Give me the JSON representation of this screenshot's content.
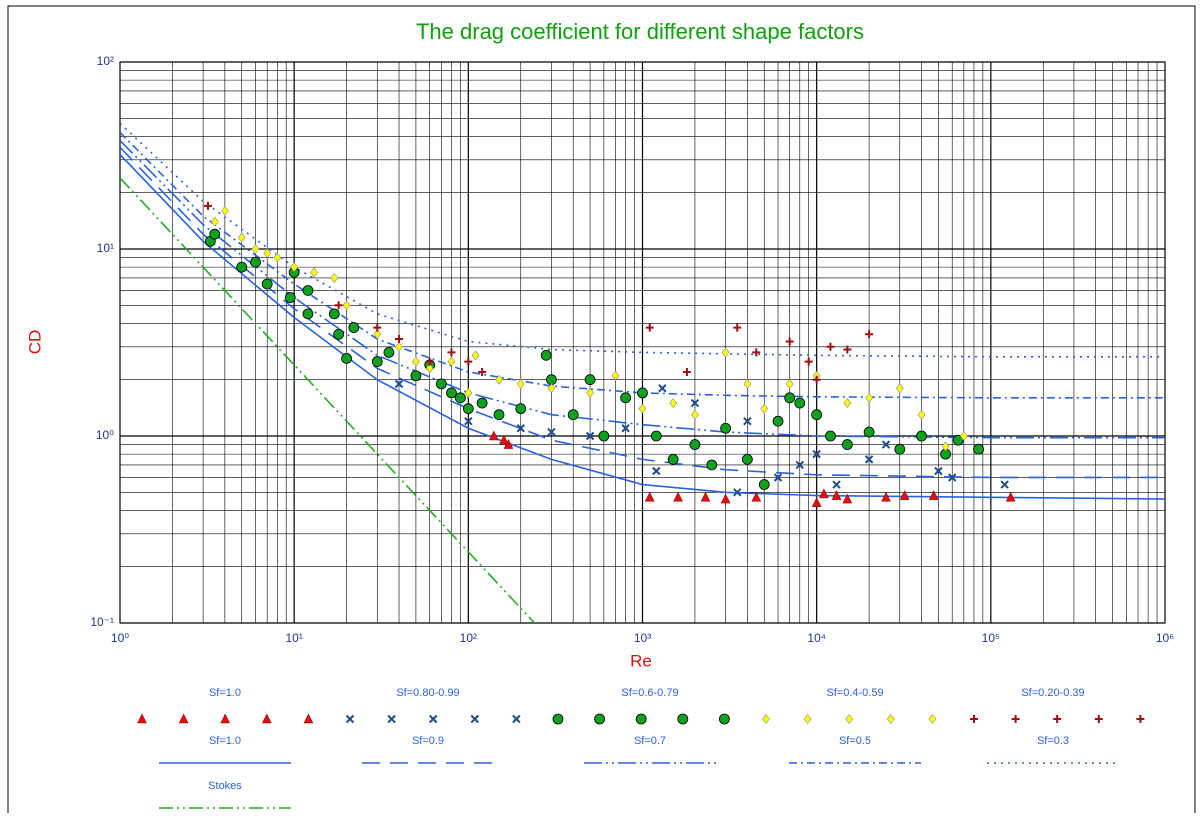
{
  "chart_data": {
    "type": "scatter",
    "title": "The drag coefficient for different shape factors",
    "x_label": "Re",
    "y_label": "CD",
    "log_x": true,
    "log_y": true,
    "grid": true,
    "minor_grid": true,
    "xlim": [
      1,
      1000000
    ],
    "ylim": [
      0.1,
      100
    ],
    "xticks": [
      {
        "value": 1,
        "label": "10⁰"
      },
      {
        "value": 10,
        "label": "10¹"
      },
      {
        "value": 100,
        "label": "10²"
      },
      {
        "value": 1000,
        "label": "10³"
      },
      {
        "value": 10000,
        "label": "10⁴"
      },
      {
        "value": 100000,
        "label": "10⁵"
      },
      {
        "value": 1000000,
        "label": "10⁶"
      }
    ],
    "yticks": [
      {
        "value": 0.1,
        "label": "10⁻¹"
      },
      {
        "value": 1,
        "label": "10⁰"
      },
      {
        "value": 10,
        "label": "10¹"
      },
      {
        "value": 100,
        "label": "10²"
      }
    ],
    "legend": "bottom",
    "series": [
      {
        "name": "Sf=1.0",
        "type": "scatter",
        "marker": "triangle",
        "color": "#e01010",
        "x": [
          1100,
          1600,
          2300,
          3000,
          4500,
          10000,
          11000,
          13000,
          15000,
          25000,
          32000,
          47000,
          130000,
          140,
          170,
          160
        ],
        "values": [
          0.47,
          0.47,
          0.47,
          0.46,
          0.47,
          0.44,
          0.49,
          0.48,
          0.46,
          0.47,
          0.48,
          0.48,
          0.47,
          1.0,
          0.9,
          0.95
        ]
      },
      {
        "name": "Sf=0.80-0.99",
        "type": "scatter",
        "marker": "x",
        "color": "#1f4e8c",
        "x": [
          40,
          100,
          200,
          300,
          500,
          800,
          1200,
          1300,
          2000,
          3500,
          6000,
          8000,
          10000,
          13000,
          20000,
          50000,
          60000,
          120000,
          4000,
          25000
        ],
        "values": [
          1.9,
          1.2,
          1.1,
          1.05,
          1.0,
          1.1,
          0.65,
          1.8,
          1.5,
          0.5,
          0.6,
          0.7,
          0.8,
          0.55,
          0.75,
          0.65,
          0.6,
          0.55,
          1.2,
          0.9
        ]
      },
      {
        "name": "Sf=0.6-0.79",
        "type": "scatter",
        "marker": "circle",
        "color": "#10a020",
        "x": [
          3.3,
          3.5,
          5,
          6,
          7,
          9.5,
          10,
          12,
          12,
          17,
          18,
          20,
          22,
          30,
          35,
          50,
          60,
          70,
          80,
          90,
          100,
          120,
          150,
          200,
          280,
          300,
          400,
          500,
          600,
          800,
          1000,
          1200,
          1500,
          2000,
          2500,
          3000,
          4000,
          5000,
          6000,
          7000,
          8000,
          10000,
          12000,
          15000,
          20000,
          30000,
          40000,
          55000,
          65000,
          85000
        ],
        "values": [
          11,
          12,
          8,
          8.5,
          6.5,
          5.5,
          7.5,
          4.5,
          6,
          4.5,
          3.5,
          2.6,
          3.8,
          2.5,
          2.8,
          2.1,
          2.4,
          1.9,
          1.7,
          1.6,
          1.4,
          1.5,
          1.3,
          1.4,
          2.7,
          2.0,
          1.3,
          2.0,
          1.0,
          1.6,
          1.7,
          1.0,
          0.75,
          0.9,
          0.7,
          1.1,
          0.75,
          0.55,
          1.2,
          1.6,
          1.5,
          1.3,
          1.0,
          0.9,
          1.05,
          0.85,
          1.0,
          0.8,
          0.95,
          0.85
        ]
      },
      {
        "name": "Sf=0.4-0.59",
        "type": "scatter",
        "marker": "diamond",
        "color": "#ffff00",
        "x": [
          3.5,
          4,
          5,
          6,
          7,
          8,
          10,
          13,
          17,
          20,
          30,
          40,
          50,
          60,
          80,
          100,
          110,
          150,
          200,
          300,
          500,
          700,
          1000,
          1500,
          2000,
          3000,
          4000,
          5000,
          7000,
          10000,
          15000,
          20000,
          30000,
          40000,
          55000,
          70000
        ],
        "values": [
          14,
          16,
          11.5,
          10,
          9.5,
          9,
          8,
          7.5,
          7,
          5,
          3.5,
          3,
          2.5,
          2.3,
          2.5,
          1.7,
          2.7,
          2.0,
          1.9,
          1.8,
          1.7,
          2.1,
          1.4,
          1.5,
          1.3,
          2.8,
          1.9,
          1.4,
          1.9,
          2.1,
          1.5,
          1.6,
          1.8,
          1.3,
          0.88,
          1.0
        ]
      },
      {
        "name": "Sf=0.20-0.39",
        "type": "scatter",
        "marker": "plus",
        "color": "#a01010",
        "x": [
          3.2,
          18,
          30,
          40,
          60,
          80,
          100,
          120,
          1100,
          1800,
          3500,
          4500,
          7000,
          9000,
          12000,
          20000,
          10000,
          15000
        ],
        "values": [
          17,
          5,
          3.8,
          3.3,
          2.5,
          2.8,
          2.5,
          2.2,
          3.8,
          2.2,
          3.8,
          2.8,
          3.2,
          2.5,
          3.0,
          3.5,
          2.0,
          2.9
        ]
      },
      {
        "name": "Sf=1.0",
        "type": "line",
        "dash": "none",
        "color": "#2a62e0",
        "x": [
          1,
          3,
          10,
          30,
          100,
          300,
          1000,
          3000,
          10000,
          100000,
          1000000
        ],
        "values": [
          32,
          11,
          4.3,
          2.0,
          1.1,
          0.75,
          0.55,
          0.5,
          0.48,
          0.47,
          0.46
        ]
      },
      {
        "name": "Sf=0.9",
        "type": "line",
        "dash": "18 10",
        "color": "#2a62e0",
        "x": [
          1,
          3,
          10,
          30,
          100,
          300,
          1000,
          3000,
          10000,
          100000,
          1000000
        ],
        "values": [
          35,
          12,
          4.8,
          2.3,
          1.4,
          0.95,
          0.75,
          0.66,
          0.62,
          0.6,
          0.6
        ]
      },
      {
        "name": "Sf=0.7",
        "type": "line",
        "dash": "18 4 2 4 2 4",
        "color": "#2a62e0",
        "x": [
          1,
          3,
          10,
          30,
          100,
          300,
          1000,
          3000,
          10000,
          100000,
          1000000
        ],
        "values": [
          38,
          13.5,
          5.5,
          2.7,
          1.7,
          1.3,
          1.15,
          1.05,
          1.0,
          0.98,
          0.98
        ]
      },
      {
        "name": "Sf=0.5",
        "type": "line",
        "dash": "8 4 2 4",
        "color": "#2a62e0",
        "x": [
          1,
          3,
          10,
          30,
          100,
          300,
          1000,
          3000,
          10000,
          100000,
          1000000
        ],
        "values": [
          42,
          15,
          6.5,
          3.3,
          2.2,
          1.85,
          1.7,
          1.65,
          1.62,
          1.6,
          1.6
        ]
      },
      {
        "name": "Sf=0.3",
        "type": "line",
        "dash": "2 5",
        "color": "#2a62e0",
        "x": [
          1,
          3,
          10,
          30,
          100,
          300,
          1000,
          3000,
          10000,
          100000,
          1000000
        ],
        "values": [
          47,
          18,
          8,
          4.5,
          3.2,
          2.9,
          2.8,
          2.75,
          2.7,
          2.65,
          2.65
        ]
      },
      {
        "name": "Stokes",
        "type": "line",
        "dash": "14 4 2 4 2 4",
        "color": "#20b020",
        "x": [
          1,
          240
        ],
        "values": [
          24,
          0.1
        ]
      }
    ]
  }
}
